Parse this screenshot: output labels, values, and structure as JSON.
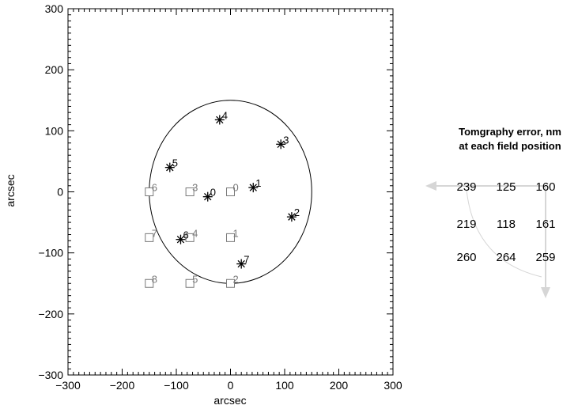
{
  "chart_data": {
    "type": "scatter",
    "xlabel": "arcsec",
    "ylabel": "arcsec",
    "xlim": [
      -300,
      300
    ],
    "ylim": [
      -300,
      300
    ],
    "xticks": [
      -300,
      -200,
      -100,
      0,
      100,
      200,
      300
    ],
    "yticks": [
      -300,
      -200,
      -100,
      0,
      100,
      200,
      300
    ],
    "circle": {
      "center": [
        0,
        0
      ],
      "radius": 150
    },
    "series": [
      {
        "marker": "square",
        "color": "#7a7a7a",
        "points": [
          {
            "label": "0",
            "x": 0,
            "y": 0
          },
          {
            "label": "1",
            "x": 0,
            "y": -75
          },
          {
            "label": "2",
            "x": 0,
            "y": -150
          },
          {
            "label": "3",
            "x": -75,
            "y": 0
          },
          {
            "label": "4",
            "x": -75,
            "y": -75
          },
          {
            "label": "5",
            "x": -75,
            "y": -150
          },
          {
            "label": "6",
            "x": -150,
            "y": 0
          },
          {
            "label": "7",
            "x": -150,
            "y": -75
          },
          {
            "label": "8",
            "x": -150,
            "y": -150
          }
        ]
      },
      {
        "marker": "asterisk",
        "color": "#000000",
        "points": [
          {
            "label": "0",
            "x": -42,
            "y": -8
          },
          {
            "label": "1",
            "x": 42,
            "y": 7
          },
          {
            "label": "2",
            "x": 113,
            "y": -41
          },
          {
            "label": "3",
            "x": 93,
            "y": 78
          },
          {
            "label": "4",
            "x": -20,
            "y": 118
          },
          {
            "label": "5",
            "x": -112,
            "y": 40
          },
          {
            "label": "6",
            "x": -92,
            "y": -78
          },
          {
            "label": "7",
            "x": 20,
            "y": -118
          }
        ]
      }
    ]
  },
  "error_panel": {
    "title_line1": "Tomgraphy error, nm",
    "title_line2": "at each field position",
    "rows": [
      [
        "239",
        "125",
        "160"
      ],
      [
        "219",
        "118",
        "161"
      ],
      [
        "260",
        "264",
        "259"
      ]
    ]
  }
}
